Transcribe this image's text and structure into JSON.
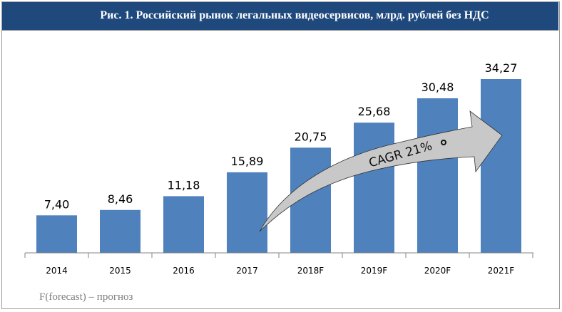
{
  "header": {
    "title": "Рис. 1. Российский рынок легальных видеосервисов, млрд. рублей без НДС"
  },
  "chart_data": {
    "type": "bar",
    "title": "Рис. 1. Российский рынок легальных видеосервисов, млрд. рублей без НДС",
    "categories": [
      "2014",
      "2015",
      "2016",
      "2017",
      "2018F",
      "2019F",
      "2020F",
      "2021F"
    ],
    "values": [
      7.4,
      8.46,
      11.18,
      15.89,
      20.75,
      25.68,
      30.48,
      34.27
    ],
    "value_labels": [
      "7,40",
      "8,46",
      "11,18",
      "15,89",
      "20,75",
      "25,68",
      "30,48",
      "34,27"
    ],
    "xlabel": "",
    "ylabel": "",
    "ylim": [
      0,
      34.27
    ],
    "grid": false,
    "bar_color": "#4f81bd",
    "annotation": "CAGR 21%"
  },
  "footnote": "F(forecast) – прогноз"
}
